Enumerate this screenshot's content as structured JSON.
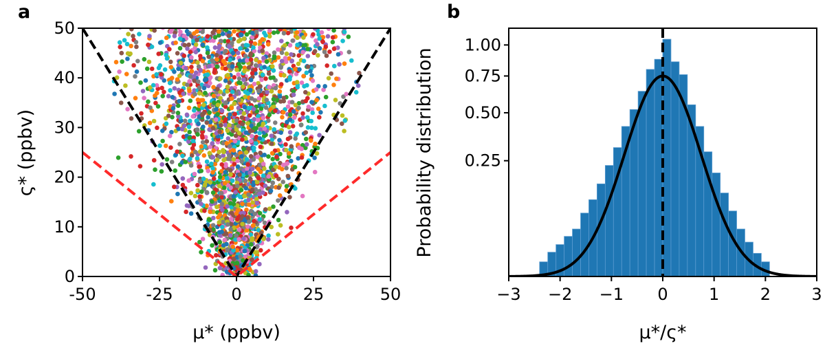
{
  "chart_data": [
    {
      "type": "scatter",
      "panel_label": "a",
      "title": "",
      "xlabel": "μ* (ppbv)",
      "ylabel": "ς* (ppbv)",
      "xlim": [
        -50,
        50
      ],
      "ylim": [
        0,
        50
      ],
      "xticks": [
        -50,
        -25,
        0,
        25,
        50
      ],
      "xtick_labels": [
        "-50",
        "-25",
        "0",
        "25",
        "50"
      ],
      "yticks": [
        0,
        10,
        20,
        30,
        40,
        50
      ],
      "ytick_labels": [
        "0",
        "10",
        "20",
        "30",
        "40",
        "50"
      ],
      "grid": false,
      "scatter_description": {
        "approx_points": 2600,
        "center_x": 0,
        "x_spread": "roughly proportional to y, dense band within |x| < 20",
        "y_range": [
          0,
          50
        ],
        "multicolored": true
      },
      "reference_lines": [
        {
          "name": "black dashed V",
          "equation": "y = |x|",
          "color": "#000000",
          "style": "dashed"
        },
        {
          "name": "red dashed V",
          "equation": "y = |x| / 2",
          "color": "#ff2a2a",
          "style": "dashed"
        }
      ],
      "palette": [
        "#1f77b4",
        "#ff7f0e",
        "#2ca02c",
        "#d62728",
        "#9467bd",
        "#8c564b",
        "#e377c2",
        "#7f7f7f",
        "#bcbd22",
        "#17becf"
      ]
    },
    {
      "type": "bar",
      "subtype": "histogram",
      "panel_label": "b",
      "title": "",
      "xlabel": "μ*/ς*",
      "ylabel": "Probability distribution",
      "xlim": [
        -3,
        3
      ],
      "yscale": "sqrt",
      "ylim": [
        0,
        1.15
      ],
      "xticks": [
        -3,
        -2,
        -1,
        0,
        1,
        2,
        3
      ],
      "xtick_labels": [
        "−3",
        "−2",
        "−1",
        "0",
        "1",
        "2",
        "3"
      ],
      "yticks": [
        0.25,
        0.5,
        0.75,
        1.0
      ],
      "ytick_labels": [
        "0.25",
        "0.50",
        "0.75",
        "1.00"
      ],
      "bin_width": 0.16,
      "bin_left_edges": [
        -2.4,
        -2.24,
        -2.08,
        -1.92,
        -1.76,
        -1.6,
        -1.44,
        -1.28,
        -1.12,
        -0.96,
        -0.8,
        -0.64,
        -0.48,
        -0.32,
        -0.16,
        0.0,
        0.16,
        0.32,
        0.48,
        0.64,
        0.8,
        0.96,
        1.12,
        1.28,
        1.44,
        1.6,
        1.76,
        1.92
      ],
      "values": [
        0.004,
        0.011,
        0.019,
        0.03,
        0.042,
        0.075,
        0.11,
        0.16,
        0.23,
        0.31,
        0.42,
        0.52,
        0.64,
        0.8,
        0.88,
        1.05,
        0.86,
        0.76,
        0.55,
        0.42,
        0.29,
        0.2,
        0.13,
        0.08,
        0.042,
        0.022,
        0.01,
        0.004
      ],
      "bar_color": "#1f77b4",
      "fit_curve": {
        "type": "gaussian",
        "mean": 0,
        "sd": 0.53,
        "peak": 0.75,
        "color": "#000000"
      },
      "vertical_line": {
        "x": 0,
        "style": "dashed",
        "color": "#000000"
      }
    }
  ]
}
